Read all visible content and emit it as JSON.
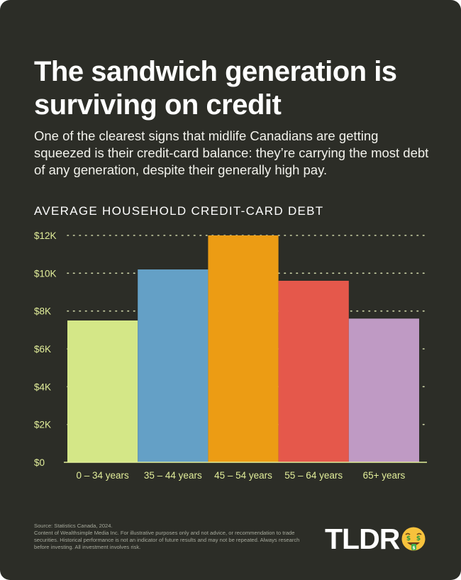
{
  "header": {
    "title": "The sandwich generation is surviving on credit",
    "subtitle": "One of the clearest signs that midlife Canadians are getting squeezed is their credit-card balance: they’re carrying the most debt of any generation, despite their generally high pay."
  },
  "chart_data": {
    "type": "bar",
    "title": "AVERAGE HOUSEHOLD CREDIT-CARD DEBT",
    "categories": [
      "0 – 34 years",
      "35 – 44 years",
      "45 – 54 years",
      "55 – 64 years",
      "65+ years"
    ],
    "values": [
      7500,
      10200,
      12000,
      9600,
      7600
    ],
    "bar_colors": [
      "#d4e787",
      "#64a0c6",
      "#ec9c14",
      "#e5584b",
      "#bf9ac4"
    ],
    "ylim": [
      0,
      12000
    ],
    "yticks": [
      0,
      2000,
      4000,
      6000,
      8000,
      10000,
      12000
    ],
    "ytick_labels": [
      "$0",
      "$2K",
      "$4K",
      "$6K",
      "$8K",
      "$10K",
      "$12K"
    ],
    "xlabel": "",
    "ylabel": "",
    "grid": true,
    "grid_style": "dotted",
    "axis_color": "#e2ee9a",
    "gridline_color": "#cfd6a8"
  },
  "footer": {
    "source": "Source: Statistics Canada, 2024.",
    "disclaimer": "Content of Wealthsimple Media Inc. For illustrative purposes only and not advice, or recommendation to trade securities. Historical performance is not an indicator of future results and may not be repeated. Always research before investing. All investment involves risk."
  },
  "logo": {
    "text": "TLDR",
    "emoji_icon": "money-mouth-face-icon"
  },
  "colors": {
    "background": "#2c2d27",
    "text": "#ffffff",
    "footer_text": "#a6a99c"
  }
}
